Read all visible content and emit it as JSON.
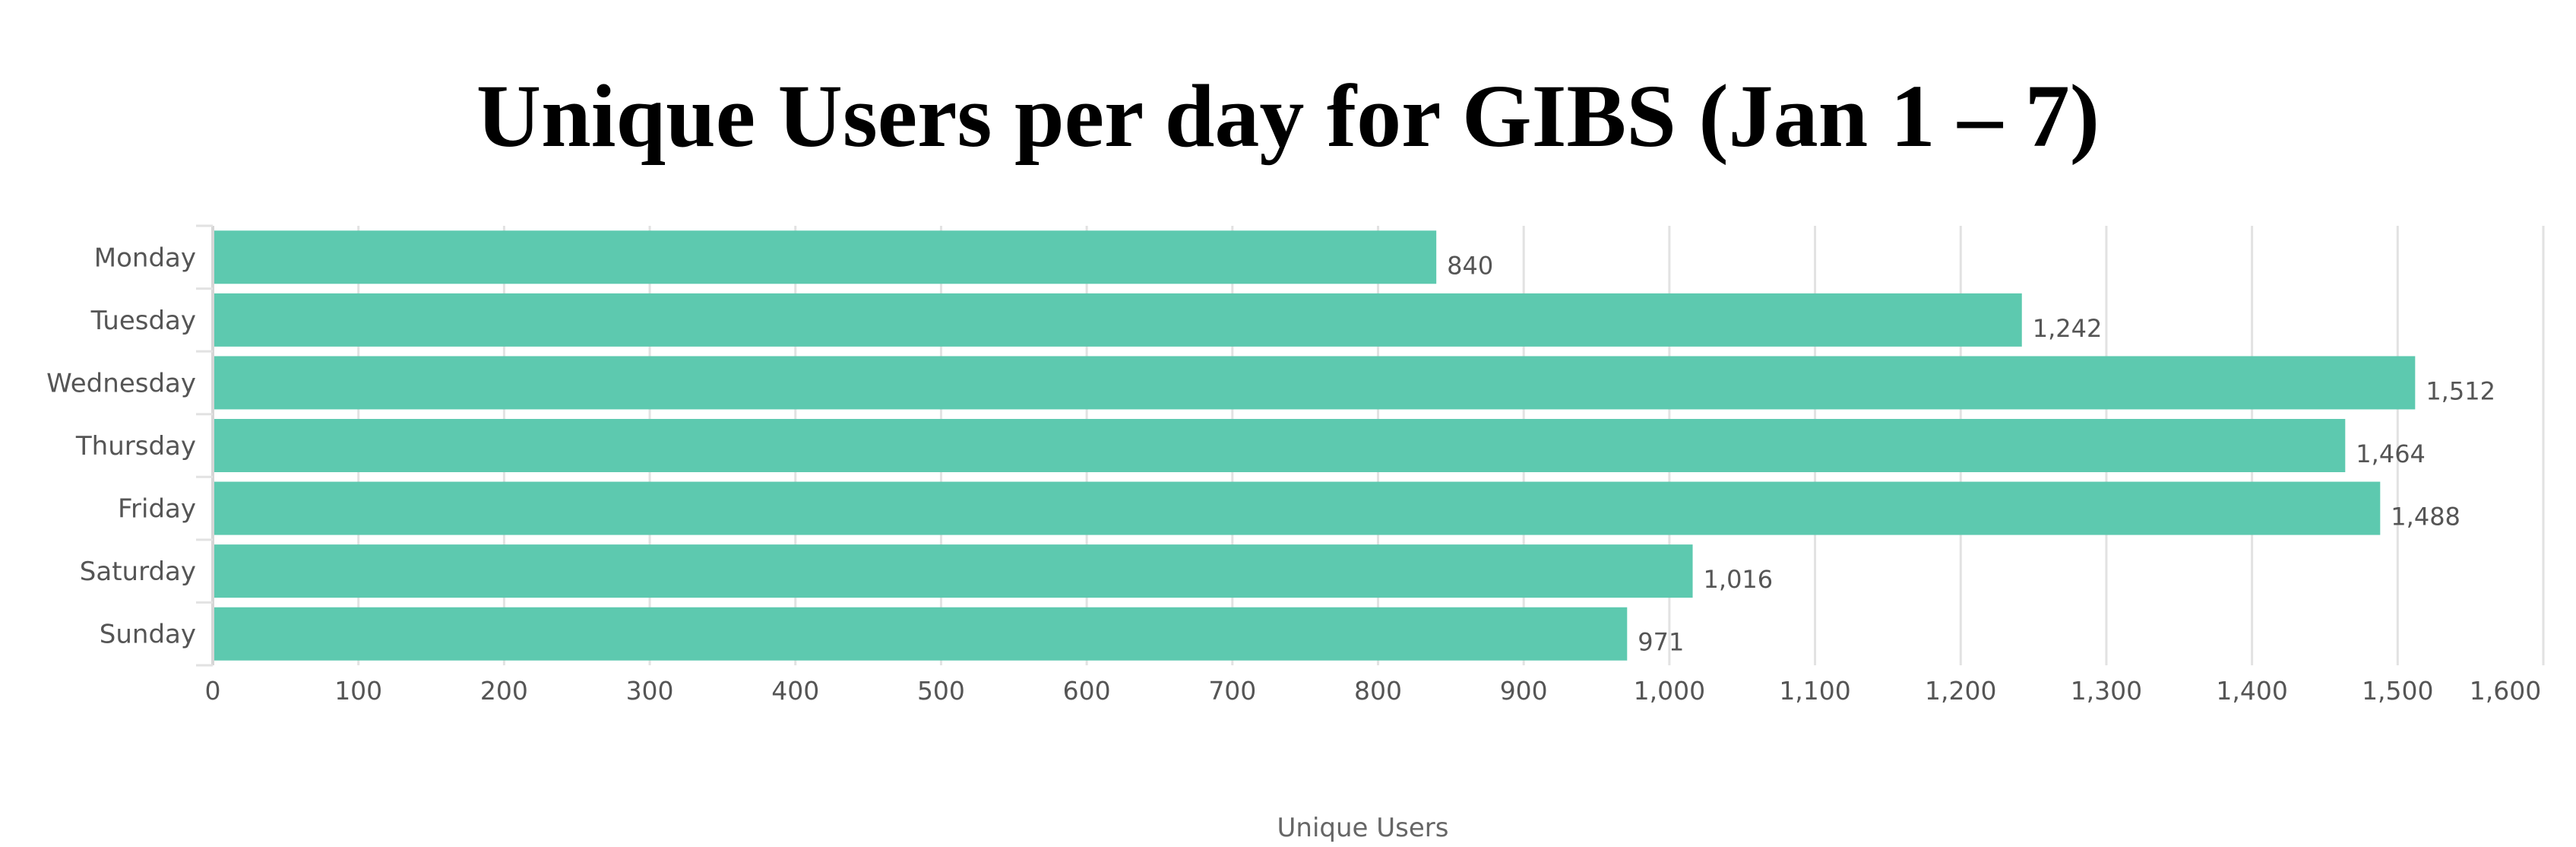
{
  "chart_data": {
    "type": "bar",
    "orientation": "horizontal",
    "title": "Unique Users per day for GIBS (Jan 1 – 7)",
    "categories": [
      "Monday",
      "Tuesday",
      "Wednesday",
      "Thursday",
      "Friday",
      "Saturday",
      "Sunday"
    ],
    "values": [
      840,
      1242,
      1512,
      1464,
      1488,
      1016,
      971
    ],
    "value_labels": [
      "840",
      "1,242",
      "1,512",
      "1,464",
      "1,488",
      "1,016",
      "971"
    ],
    "xlabel": "Unique Users",
    "ylabel": "",
    "xlim": [
      0,
      1600
    ],
    "xticks": [
      0,
      100,
      200,
      300,
      400,
      500,
      600,
      700,
      800,
      900,
      1000,
      1100,
      1200,
      1300,
      1400,
      1500,
      1600
    ],
    "xtick_labels": [
      "0",
      "100",
      "200",
      "300",
      "400",
      "500",
      "600",
      "700",
      "800",
      "900",
      "1,000",
      "1,100",
      "1,200",
      "1,300",
      "1,400",
      "1,500",
      "1,600"
    ],
    "grid": true,
    "bar_color": "#5DC9AF"
  }
}
